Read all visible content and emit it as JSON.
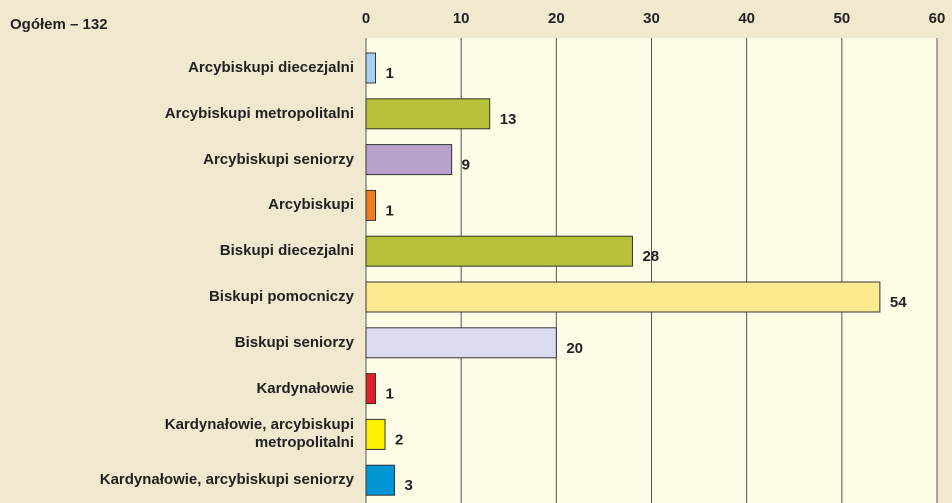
{
  "chart_data": {
    "type": "bar",
    "orientation": "horizontal",
    "title": "Ogółem – 132",
    "categories": [
      "Arcybiskupi diecezjalni",
      "Arcybiskupi metropolitalni",
      "Arcybiskupi seniorzy",
      "Arcybiskupi",
      "Biskupi diecezjalni",
      "Biskupi pomocniczy",
      "Biskupi seniorzy",
      "Kardynałowie",
      "Kardynałowie, arcybiskupi metropolitalni",
      "Kardynałowie, arcybiskupi seniorzy"
    ],
    "values": [
      1,
      13,
      9,
      1,
      28,
      54,
      20,
      1,
      2,
      3
    ],
    "colors": [
      "#a9d0f0",
      "#b5c23a",
      "#b9a2cc",
      "#f07d20",
      "#b5c23a",
      "#fde98e",
      "#dcdcf0",
      "#e21e26",
      "#fff200",
      "#0095d5"
    ],
    "xlim": [
      0,
      60
    ],
    "xticks": [
      0,
      10,
      20,
      30,
      40,
      50,
      60
    ],
    "grid": true
  }
}
